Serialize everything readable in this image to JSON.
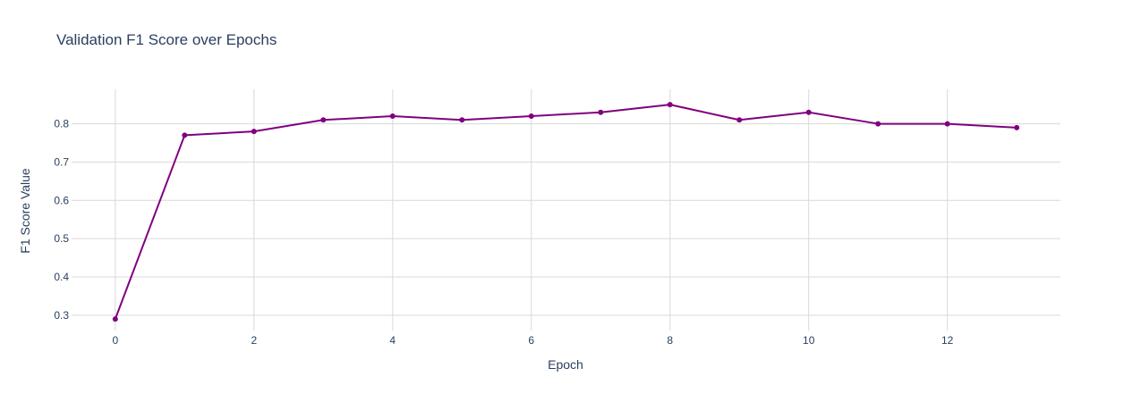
{
  "chart_data": {
    "type": "line",
    "title": "Validation F1 Score over Epochs",
    "xlabel": "Epoch",
    "ylabel": "F1 Score Value",
    "x": [
      0,
      1,
      2,
      3,
      4,
      5,
      6,
      7,
      8,
      9,
      10,
      11,
      12,
      13
    ],
    "series": [
      {
        "values": [
          0.29,
          0.77,
          0.78,
          0.81,
          0.82,
          0.81,
          0.82,
          0.83,
          0.85,
          0.81,
          0.83,
          0.8,
          0.8,
          0.79
        ]
      }
    ],
    "xlim": [
      -0.63,
      13.63
    ],
    "ylim": [
      0.26,
      0.89
    ],
    "xticks": [
      0,
      2,
      4,
      6,
      8,
      10,
      12
    ],
    "yticks": [
      0.3,
      0.4,
      0.5,
      0.6,
      0.7,
      0.8
    ],
    "grid": true,
    "colors": {
      "line": "#800080",
      "grid": "#d9d9d9",
      "text": "#2a3f5f"
    }
  }
}
